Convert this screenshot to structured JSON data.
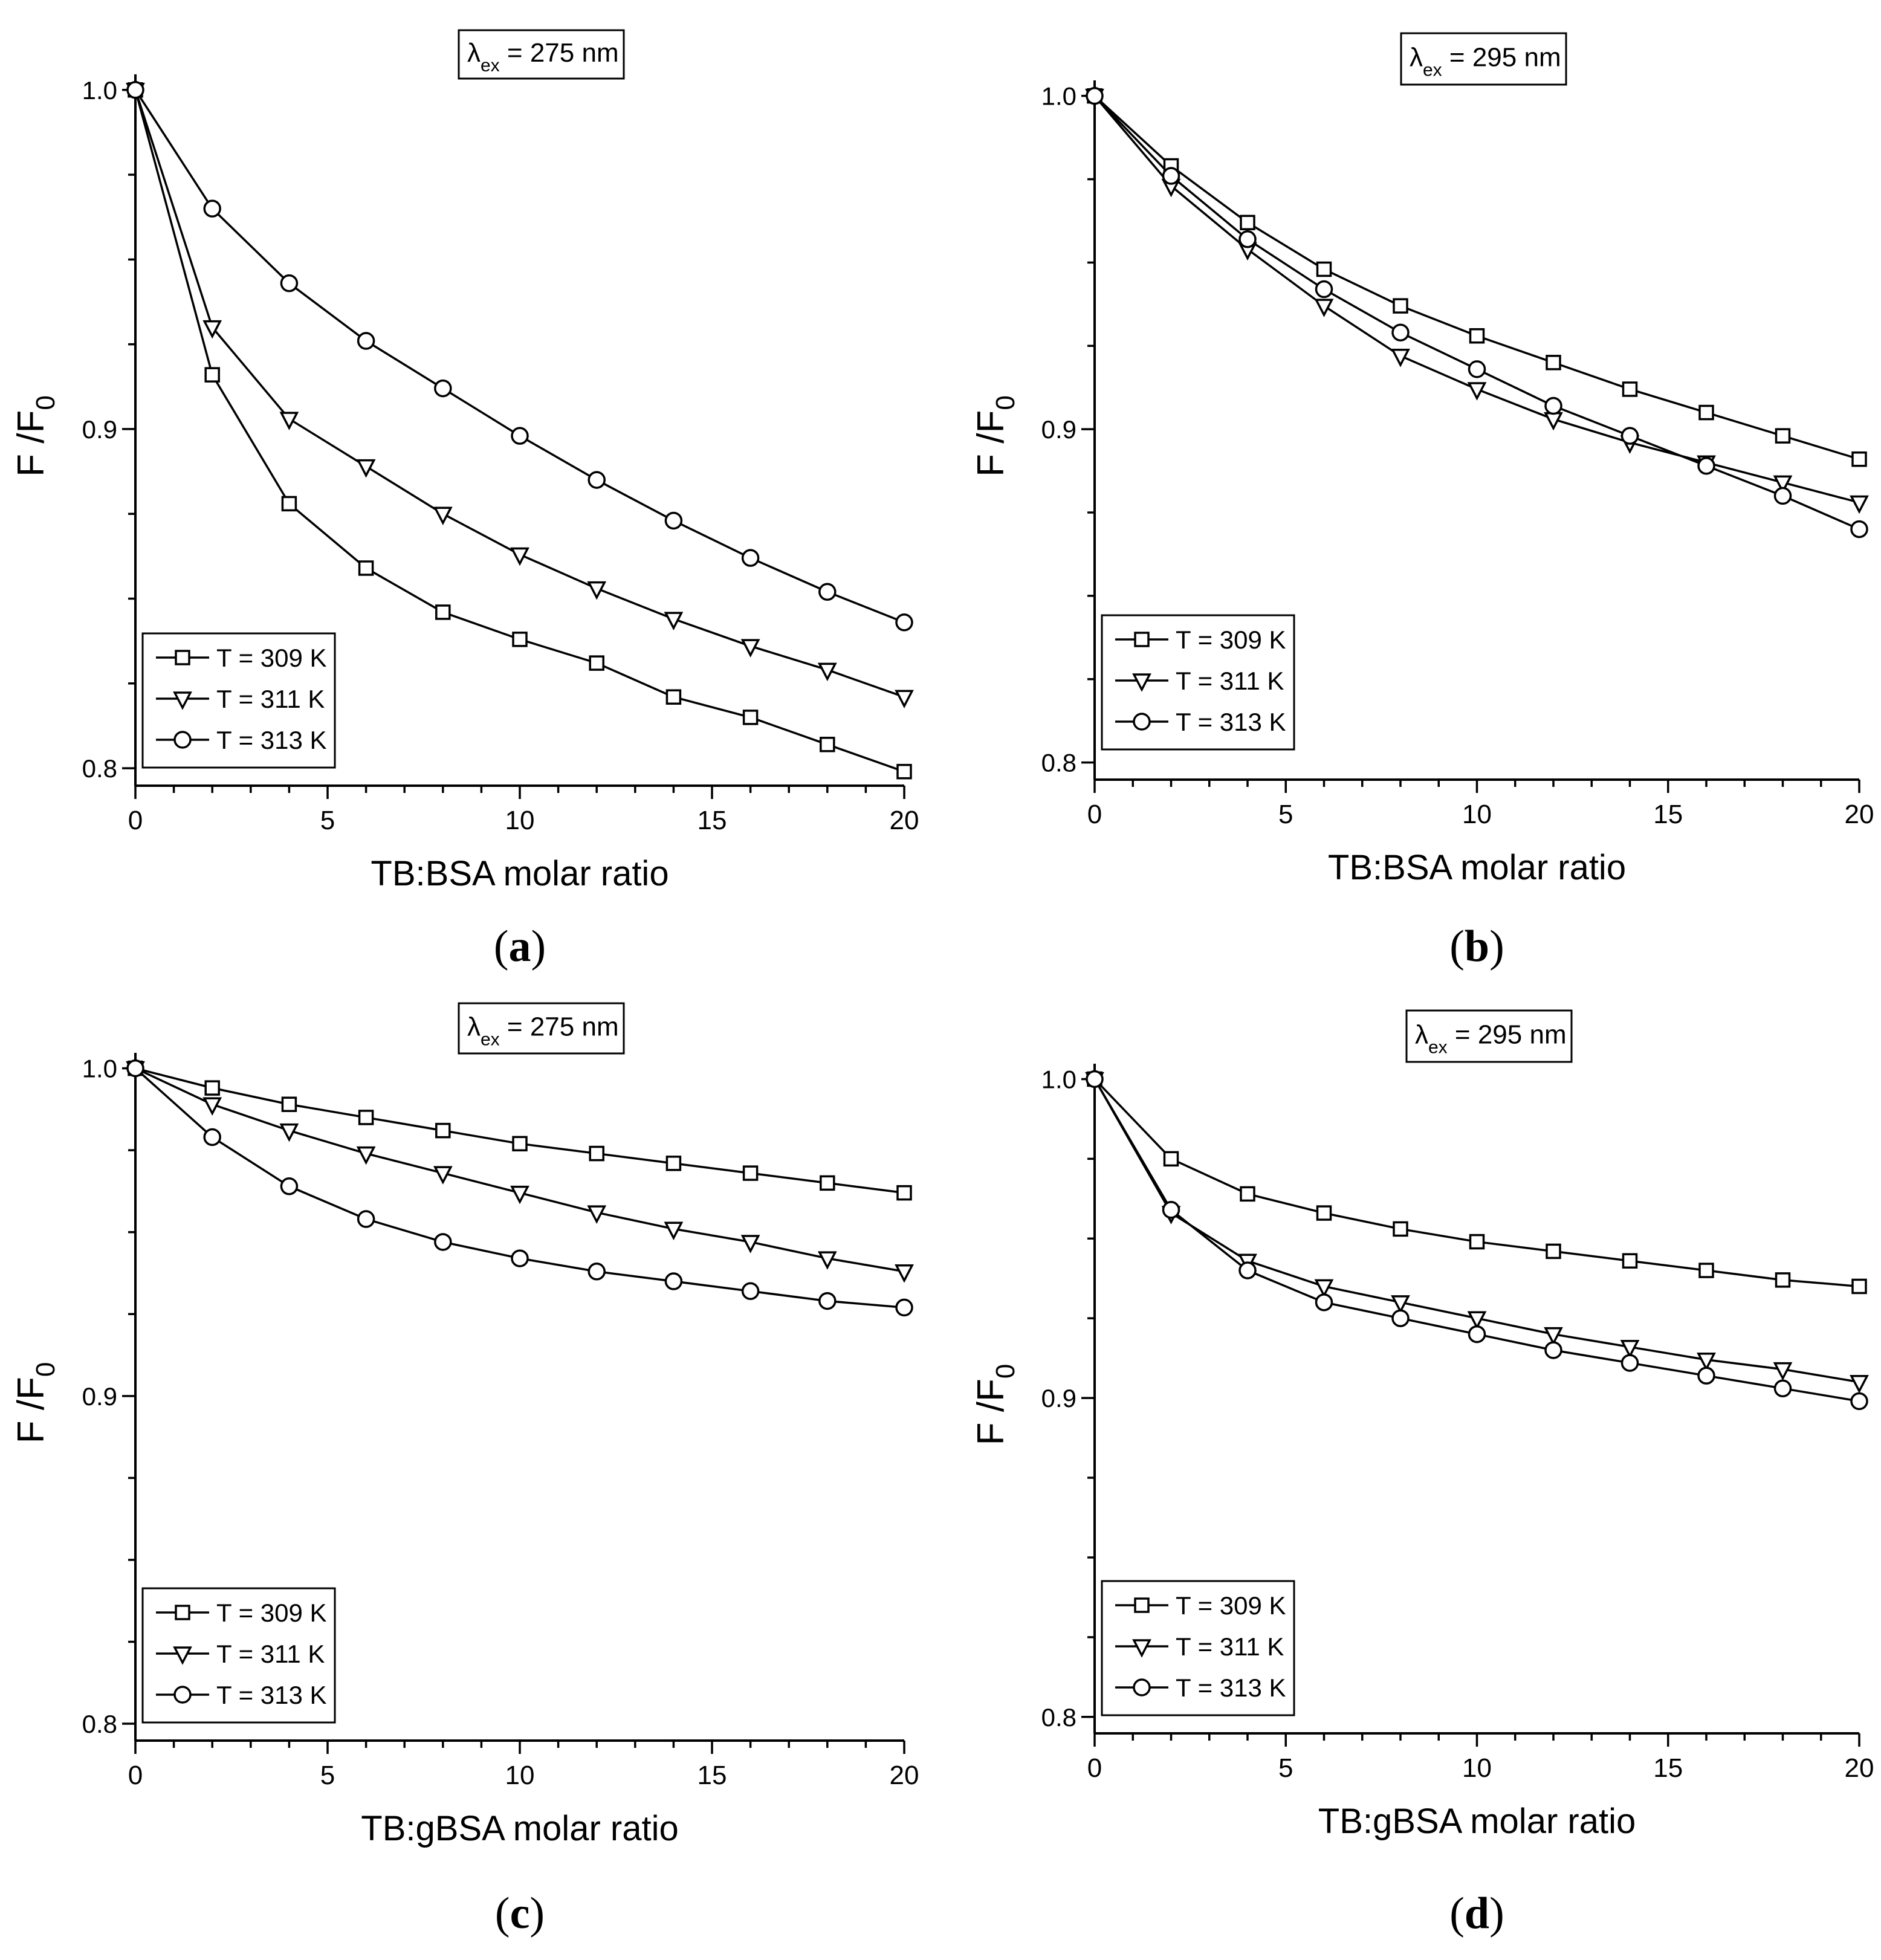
{
  "chart_data": [
    {
      "type": "line",
      "panel_label": "(a)",
      "box_label": {
        "symbol": "λ",
        "subscript": "ex",
        "text": " = 275 nm"
      },
      "xlabel": "TB:BSA molar ratio",
      "ylabel": {
        "main": "F /F",
        "subscript": "0"
      },
      "xlim": [
        0,
        20
      ],
      "ylim": [
        0.8,
        1.0
      ],
      "xticks": [
        0,
        5,
        10,
        15,
        20
      ],
      "yticks": [
        0.8,
        0.9,
        1.0
      ],
      "ytick_labels": [
        "0.8",
        "0.9",
        "1.0"
      ],
      "x": [
        0,
        2,
        4,
        6,
        8,
        10,
        12,
        14,
        16,
        18,
        20
      ],
      "legend_position": "bottom-left",
      "series": [
        {
          "name": "T = 309 K",
          "marker": "square",
          "values": [
            1.0,
            0.916,
            0.878,
            0.859,
            0.846,
            0.838,
            0.831,
            0.821,
            0.815,
            0.807,
            0.799
          ]
        },
        {
          "name": "T = 311 K",
          "marker": "triangle-down",
          "values": [
            1.0,
            0.93,
            0.903,
            0.889,
            0.875,
            0.863,
            0.853,
            0.844,
            0.836,
            0.829,
            0.821
          ]
        },
        {
          "name": "T = 313 K",
          "marker": "circle",
          "values": [
            1.0,
            0.965,
            0.943,
            0.926,
            0.912,
            0.898,
            0.885,
            0.873,
            0.862,
            0.852,
            0.843
          ]
        }
      ]
    },
    {
      "type": "line",
      "panel_label": "(b)",
      "box_label": {
        "symbol": "λ",
        "subscript": "ex",
        "text": " = 295 nm"
      },
      "xlabel": "TB:BSA molar ratio",
      "ylabel": {
        "main": "F /F",
        "subscript": "0"
      },
      "xlim": [
        0,
        20
      ],
      "ylim": [
        0.8,
        1.0
      ],
      "xticks": [
        0,
        5,
        10,
        15,
        20
      ],
      "yticks": [
        0.8,
        0.9,
        1.0
      ],
      "ytick_labels": [
        "0.8",
        "0.9",
        "1.0"
      ],
      "x": [
        0,
        2,
        4,
        6,
        8,
        10,
        12,
        14,
        16,
        18,
        20
      ],
      "legend_position": "bottom-left",
      "series": [
        {
          "name": "T = 309 K",
          "marker": "square",
          "values": [
            1.0,
            0.979,
            0.962,
            0.948,
            0.937,
            0.928,
            0.92,
            0.912,
            0.905,
            0.898,
            0.891
          ]
        },
        {
          "name": "T = 311 K",
          "marker": "triangle-down",
          "values": [
            1.0,
            0.973,
            0.954,
            0.937,
            0.922,
            0.912,
            0.903,
            0.896,
            0.89,
            0.884,
            0.878
          ]
        },
        {
          "name": "T = 313 K",
          "marker": "circle",
          "values": [
            1.0,
            0.976,
            0.957,
            0.942,
            0.929,
            0.918,
            0.907,
            0.898,
            0.889,
            0.88,
            0.87
          ]
        }
      ]
    },
    {
      "type": "line",
      "panel_label": "(c)",
      "box_label": {
        "symbol": "λ",
        "subscript": "ex",
        "text": " = 275 nm"
      },
      "xlabel": "TB:gBSA molar ratio",
      "ylabel": {
        "main": "F /F",
        "subscript": "0"
      },
      "xlim": [
        0,
        20
      ],
      "ylim": [
        0.8,
        1.0
      ],
      "xticks": [
        0,
        5,
        10,
        15,
        20
      ],
      "yticks": [
        0.8,
        0.9,
        1.0
      ],
      "ytick_labels": [
        "0.8",
        "0.9",
        "1.0"
      ],
      "x": [
        0,
        2,
        4,
        6,
        8,
        10,
        12,
        14,
        16,
        18,
        20
      ],
      "legend_position": "bottom-left",
      "series": [
        {
          "name": "T = 309 K",
          "marker": "square",
          "values": [
            1.0,
            0.994,
            0.989,
            0.985,
            0.981,
            0.977,
            0.974,
            0.971,
            0.968,
            0.965,
            0.962
          ]
        },
        {
          "name": "T = 311 K",
          "marker": "triangle-down",
          "values": [
            1.0,
            0.989,
            0.981,
            0.974,
            0.968,
            0.962,
            0.956,
            0.951,
            0.947,
            0.942,
            0.938
          ]
        },
        {
          "name": "T = 313 K",
          "marker": "circle",
          "values": [
            1.0,
            0.979,
            0.964,
            0.954,
            0.947,
            0.942,
            0.938,
            0.935,
            0.932,
            0.929,
            0.927
          ]
        }
      ]
    },
    {
      "type": "line",
      "panel_label": "(d)",
      "box_label": {
        "symbol": "λ",
        "subscript": "ex",
        "text": " = 295 nm"
      },
      "xlabel": "TB:gBSA molar ratio",
      "ylabel": {
        "main": "F /F",
        "subscript": "0"
      },
      "xlim": [
        0,
        20
      ],
      "ylim": [
        0.8,
        1.0
      ],
      "xticks": [
        0,
        5,
        10,
        15,
        20
      ],
      "yticks": [
        0.8,
        0.9,
        1.0
      ],
      "ytick_labels": [
        "0.8",
        "0.9",
        "1.0"
      ],
      "x": [
        0,
        2,
        4,
        6,
        8,
        10,
        12,
        14,
        16,
        18,
        20
      ],
      "legend_position": "bottom-left",
      "series": [
        {
          "name": "T = 309 K",
          "marker": "square",
          "values": [
            1.0,
            0.975,
            0.964,
            0.958,
            0.953,
            0.949,
            0.946,
            0.943,
            0.94,
            0.937,
            0.935
          ]
        },
        {
          "name": "T = 311 K",
          "marker": "triangle-down",
          "values": [
            1.0,
            0.958,
            0.943,
            0.935,
            0.93,
            0.925,
            0.92,
            0.916,
            0.912,
            0.909,
            0.905
          ]
        },
        {
          "name": "T = 313 K",
          "marker": "circle",
          "values": [
            1.0,
            0.959,
            0.94,
            0.93,
            0.925,
            0.92,
            0.915,
            0.911,
            0.907,
            0.903,
            0.899
          ]
        }
      ]
    }
  ]
}
